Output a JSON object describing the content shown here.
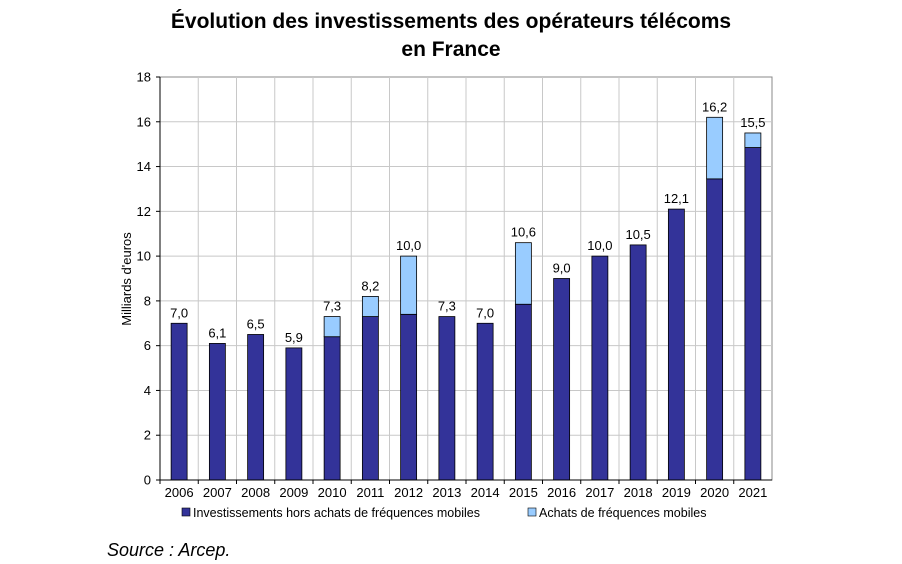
{
  "chart_data": {
    "type": "bar",
    "stacked": true,
    "title_line1": "Évolution des investissements des opérateurs télécoms",
    "title_line2": "en France",
    "ylabel": "Milliards d'euros",
    "xlabel": "",
    "ylim": [
      0,
      18
    ],
    "yticks": [
      "0",
      "2",
      "4",
      "6",
      "8",
      "10",
      "12",
      "14",
      "16",
      "18"
    ],
    "grid": true,
    "legend_position": "bottom",
    "categories": [
      "2006",
      "2007",
      "2008",
      "2009",
      "2010",
      "2011",
      "2012",
      "2013",
      "2014",
      "2015",
      "2016",
      "2017",
      "2018",
      "2019",
      "2020",
      "2021"
    ],
    "series": [
      {
        "name": "Investissements hors achats de fréquences mobiles",
        "color": "#333399",
        "values": [
          7.0,
          6.1,
          6.5,
          5.9,
          6.4,
          7.3,
          7.4,
          7.3,
          7.0,
          7.85,
          9.0,
          10.0,
          10.5,
          12.1,
          13.45,
          14.85
        ]
      },
      {
        "name": "Achats de fréquences mobiles",
        "color": "#99ccff",
        "values": [
          0,
          0,
          0,
          0,
          0.9,
          0.9,
          2.6,
          0,
          0,
          2.75,
          0,
          0,
          0,
          0,
          2.75,
          0.65
        ]
      }
    ],
    "total_labels": [
      "7,0",
      "6,1",
      "6,5",
      "5,9",
      "7,3",
      "8,2",
      "10,0",
      "7,3",
      "7,0",
      "10,6",
      "9,0",
      "10,0",
      "10,5",
      "12,1",
      "16,2",
      "15,5"
    ]
  },
  "source": "Source : Arcep."
}
